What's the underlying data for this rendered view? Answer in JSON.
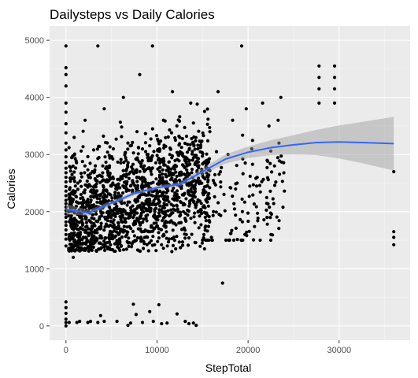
{
  "chart_data": {
    "type": "scatter",
    "title": "Dailysteps vs Daily Calories",
    "xlabel": "StepTotal",
    "ylabel": "Calories",
    "xlim": [
      -1800,
      37800
    ],
    "ylim": [
      -250,
      5250
    ],
    "x_ticks": [
      0,
      10000,
      20000,
      30000
    ],
    "y_ticks": [
      0,
      1000,
      2000,
      3000,
      4000,
      5000
    ],
    "grid": true,
    "legend": "none",
    "points": [
      [
        0,
        0
      ],
      [
        0,
        60
      ],
      [
        0,
        120
      ],
      [
        0,
        220
      ],
      [
        0,
        320
      ],
      [
        0,
        420
      ],
      [
        0,
        1400
      ],
      [
        0,
        1520
      ],
      [
        0,
        1600
      ],
      [
        0,
        1680
      ],
      [
        0,
        1760
      ],
      [
        0,
        1820
      ],
      [
        0,
        1900
      ],
      [
        0,
        1960
      ],
      [
        0,
        2020
      ],
      [
        0,
        2080
      ],
      [
        0,
        2140
      ],
      [
        0,
        2200
      ],
      [
        0,
        2280
      ],
      [
        0,
        2360
      ],
      [
        0,
        2440
      ],
      [
        0,
        2520
      ],
      [
        0,
        2600
      ],
      [
        0,
        2680
      ],
      [
        0,
        2760
      ],
      [
        0,
        2860
      ],
      [
        0,
        2960
      ],
      [
        0,
        3080
      ],
      [
        0,
        3200
      ],
      [
        0,
        3380
      ],
      [
        0,
        3540
      ],
      [
        0,
        3740
      ],
      [
        0,
        3900
      ],
      [
        0,
        4200
      ],
      [
        0,
        4400
      ],
      [
        0,
        4520
      ],
      [
        0,
        4900
      ],
      [
        350,
        60
      ],
      [
        800,
        1200
      ],
      [
        1200,
        60
      ],
      [
        1500,
        80
      ],
      [
        2400,
        60
      ],
      [
        2700,
        80
      ],
      [
        3500,
        60
      ],
      [
        3800,
        180
      ],
      [
        4200,
        80
      ],
      [
        5600,
        80
      ],
      [
        6800,
        10
      ],
      [
        7100,
        50
      ],
      [
        7400,
        380
      ],
      [
        7700,
        200
      ],
      [
        8400,
        60
      ],
      [
        9200,
        250
      ],
      [
        9600,
        80
      ],
      [
        10200,
        370
      ],
      [
        10500,
        40
      ],
      [
        11100,
        50
      ],
      [
        12200,
        210
      ],
      [
        13100,
        80
      ],
      [
        13500,
        40
      ],
      [
        14000,
        50
      ],
      [
        14300,
        10
      ],
      [
        600,
        2200
      ],
      [
        900,
        3300
      ],
      [
        1300,
        2500
      ],
      [
        1800,
        1700
      ],
      [
        2100,
        3600
      ],
      [
        2500,
        2000
      ],
      [
        2900,
        2700
      ],
      [
        3400,
        1500
      ],
      [
        3500,
        4900
      ],
      [
        3800,
        2300
      ],
      [
        4200,
        3800
      ],
      [
        4500,
        1900
      ],
      [
        4800,
        2600
      ],
      [
        5200,
        3100
      ],
      [
        5600,
        1700
      ],
      [
        5900,
        2200
      ],
      [
        6300,
        4000
      ],
      [
        6600,
        2900
      ],
      [
        7000,
        1900
      ],
      [
        7400,
        2500
      ],
      [
        7800,
        3400
      ],
      [
        8100,
        4400
      ],
      [
        8500,
        2100
      ],
      [
        8900,
        3000
      ],
      [
        9200,
        2400
      ],
      [
        9500,
        4900
      ],
      [
        9900,
        1800
      ],
      [
        10300,
        2700
      ],
      [
        10700,
        3600
      ],
      [
        11000,
        2200
      ],
      [
        11400,
        3000
      ],
      [
        11700,
        4100
      ],
      [
        12100,
        2500
      ],
      [
        12500,
        3300
      ],
      [
        12900,
        2000
      ],
      [
        13300,
        2800
      ],
      [
        13700,
        3900
      ],
      [
        14100,
        2400
      ],
      [
        14500,
        3100
      ],
      [
        14900,
        2700
      ],
      [
        15300,
        1900
      ],
      [
        15800,
        3400
      ],
      [
        16300,
        2500
      ],
      [
        16700,
        4100
      ],
      [
        17200,
        750
      ],
      [
        17800,
        3000
      ],
      [
        18300,
        3600
      ],
      [
        18800,
        2500
      ],
      [
        19300,
        4900
      ],
      [
        19800,
        3800
      ],
      [
        20400,
        3100
      ],
      [
        21000,
        2600
      ],
      [
        21600,
        3900
      ],
      [
        22300,
        3500
      ],
      [
        22900,
        2800
      ],
      [
        23300,
        3600
      ],
      [
        23600,
        4000
      ],
      [
        27800,
        4550
      ],
      [
        27800,
        4350
      ],
      [
        27800,
        4150
      ],
      [
        27800,
        3900
      ],
      [
        29500,
        4550
      ],
      [
        29500,
        4350
      ],
      [
        29500,
        4150
      ],
      [
        29500,
        3900
      ],
      [
        36000,
        2700
      ],
      [
        36000,
        1650
      ],
      [
        36000,
        1550
      ],
      [
        36000,
        1420
      ]
    ],
    "smooth": {
      "x": [
        0,
        2500,
        5000,
        7500,
        10000,
        12500,
        15000,
        17500,
        20000,
        22500,
        25000,
        27500,
        30000,
        32500,
        36000
      ],
      "y": [
        2040,
        1980,
        2150,
        2320,
        2420,
        2480,
        2700,
        2920,
        3040,
        3120,
        3170,
        3210,
        3220,
        3210,
        3190
      ],
      "ci_half": [
        90,
        50,
        40,
        35,
        35,
        40,
        60,
        80,
        100,
        130,
        170,
        220,
        290,
        360,
        470
      ]
    }
  }
}
